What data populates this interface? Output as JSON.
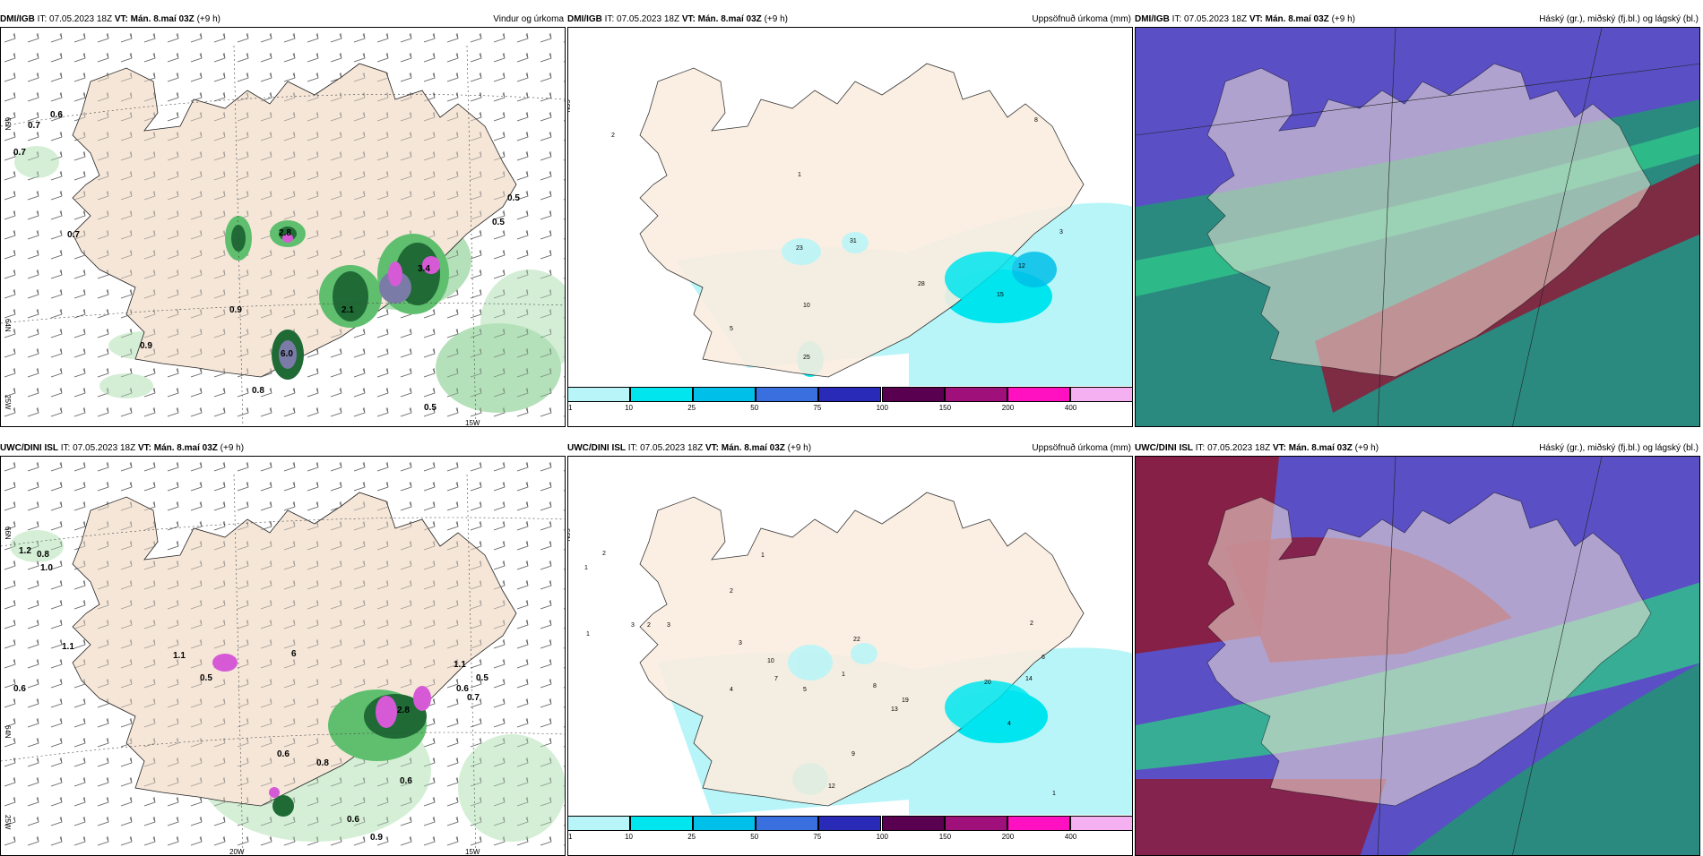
{
  "panels": [
    {
      "model": "DMI/IGB",
      "it": "IT: 07.05.2023 18Z",
      "vt": "VT: Mán. 8.maí 03Z",
      "lead": "(+9 h)",
      "title": "Vindur og úrkoma"
    },
    {
      "model": "DMI/IGB",
      "it": "IT: 07.05.2023 18Z",
      "vt": "VT: Mán. 8.maí 03Z",
      "lead": "(+9 h)",
      "title": "Uppsöfnuð úrkoma (mm)"
    },
    {
      "model": "DMI/IGB",
      "it": "IT: 07.05.2023 18Z",
      "vt": "VT: Mán. 8.maí 03Z",
      "lead": "(+9 h)",
      "title": "Háský (gr.), miðský (fj.bl.) og lágský (bl.)"
    },
    {
      "model": "UWC/DINI ISL",
      "it": "IT: 07.05.2023 18Z",
      "vt": "VT: Mán. 8.maí 03Z",
      "lead": "(+9 h)",
      "title": ""
    },
    {
      "model": "UWC/DINI ISL",
      "it": "IT: 07.05.2023 18Z",
      "vt": "VT: Mán. 8.maí 03Z",
      "lead": "(+9 h)",
      "title": "Uppsöfnuð úrkoma (mm)"
    },
    {
      "model": "UWC/DINI ISL",
      "it": "IT: 07.05.2023 18Z",
      "vt": "VT: Mán. 8.maí 03Z",
      "lead": "(+9 h)",
      "title": "Háský (gr.), miðský (fj.bl.) og lágský (bl.)"
    }
  ],
  "colorbar": {
    "ticks": [
      "1",
      "10",
      "25",
      "50",
      "75",
      "100",
      "150",
      "200",
      "400"
    ],
    "colors": [
      "#b8f5f8",
      "#00e5ee",
      "#00bfe8",
      "#3a6fe0",
      "#2a2ab8",
      "#5a0050",
      "#a0107a",
      "#ff10c0",
      "#f4b0f0"
    ]
  },
  "axis_labels": {
    "lat_n66": "66N",
    "lat_n64": "64N",
    "lon_w25": "25W",
    "lon_w20": "20W",
    "lon_w15": "15W"
  },
  "wind_labels": {
    "dmi": [
      "0.6",
      "0.7",
      "0.7",
      "0.7",
      "0.5",
      "0.5",
      "0.9",
      "0.9",
      "2.8",
      "2.1",
      "3.4",
      "6.0",
      "0.8",
      "0.5"
    ],
    "uwc": [
      "1.2",
      "0.8",
      "1.0",
      "1.1",
      "1.1",
      "0.5",
      "0.6",
      "6",
      "0.6",
      "1.1",
      "0.5",
      "0.6",
      "0.7",
      "0.6",
      "0.8",
      "0.6",
      "0.9",
      "2.8"
    ]
  },
  "precip_labels": {
    "dmi": [
      "2",
      "1",
      "8",
      "3",
      "10",
      "5",
      "23",
      "31",
      "25",
      "28",
      "15",
      "12"
    ],
    "uwc": [
      "2",
      "1",
      "1",
      "2",
      "3",
      "1",
      "2",
      "3",
      "3",
      "4",
      "5",
      "7",
      "1",
      "8",
      "10",
      "13",
      "19",
      "22",
      "20",
      "14",
      "6",
      "2",
      "9",
      "12",
      "4",
      "1"
    ]
  },
  "colors": {
    "land": "#f5e6d8",
    "sea": "#ffffff",
    "green_dark": "#1f6a35",
    "green_mid": "#5fbf6e",
    "green_light": "#cdeccf",
    "magenta": "#d65ad6",
    "cloud_blue": "#5a4fc4",
    "cloud_teal": "#2a8a80",
    "cloud_red": "#8c1b3a",
    "cloud_green": "#2fc48a"
  }
}
